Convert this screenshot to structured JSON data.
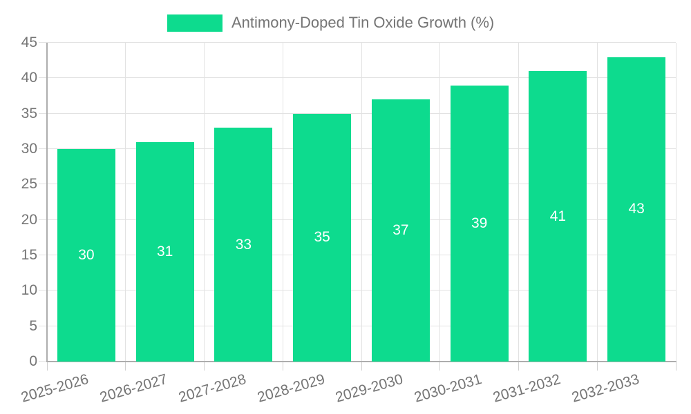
{
  "colors": {
    "bar": "#0DDB8E",
    "axis_text": "#757575",
    "grid": "#E2E2E2",
    "axis_line": "#ADADAD",
    "tick": "#CFCFCF",
    "value_label": "#FFFFFF",
    "background": "#FFFFFF"
  },
  "chart_data": {
    "type": "bar",
    "title": "",
    "xlabel": "",
    "ylabel": "",
    "categories": [
      "2025-2026",
      "2026-2027",
      "2027-2028",
      "2028-2029",
      "2029-2030",
      "2030-2031",
      "2031-2032",
      "2032-2033"
    ],
    "series": [
      {
        "name": "Antimony-Doped Tin Oxide Growth (%)",
        "values": [
          30,
          31,
          33,
          35,
          37,
          39,
          41,
          43
        ]
      }
    ],
    "ylim": [
      0,
      45
    ],
    "ytick_step": 5,
    "yticks": [
      0,
      5,
      10,
      15,
      20,
      25,
      30,
      35,
      40,
      45
    ],
    "grid": true,
    "legend_position": "top",
    "value_labels": "inside-center",
    "x_label_rotation_deg": -16
  }
}
